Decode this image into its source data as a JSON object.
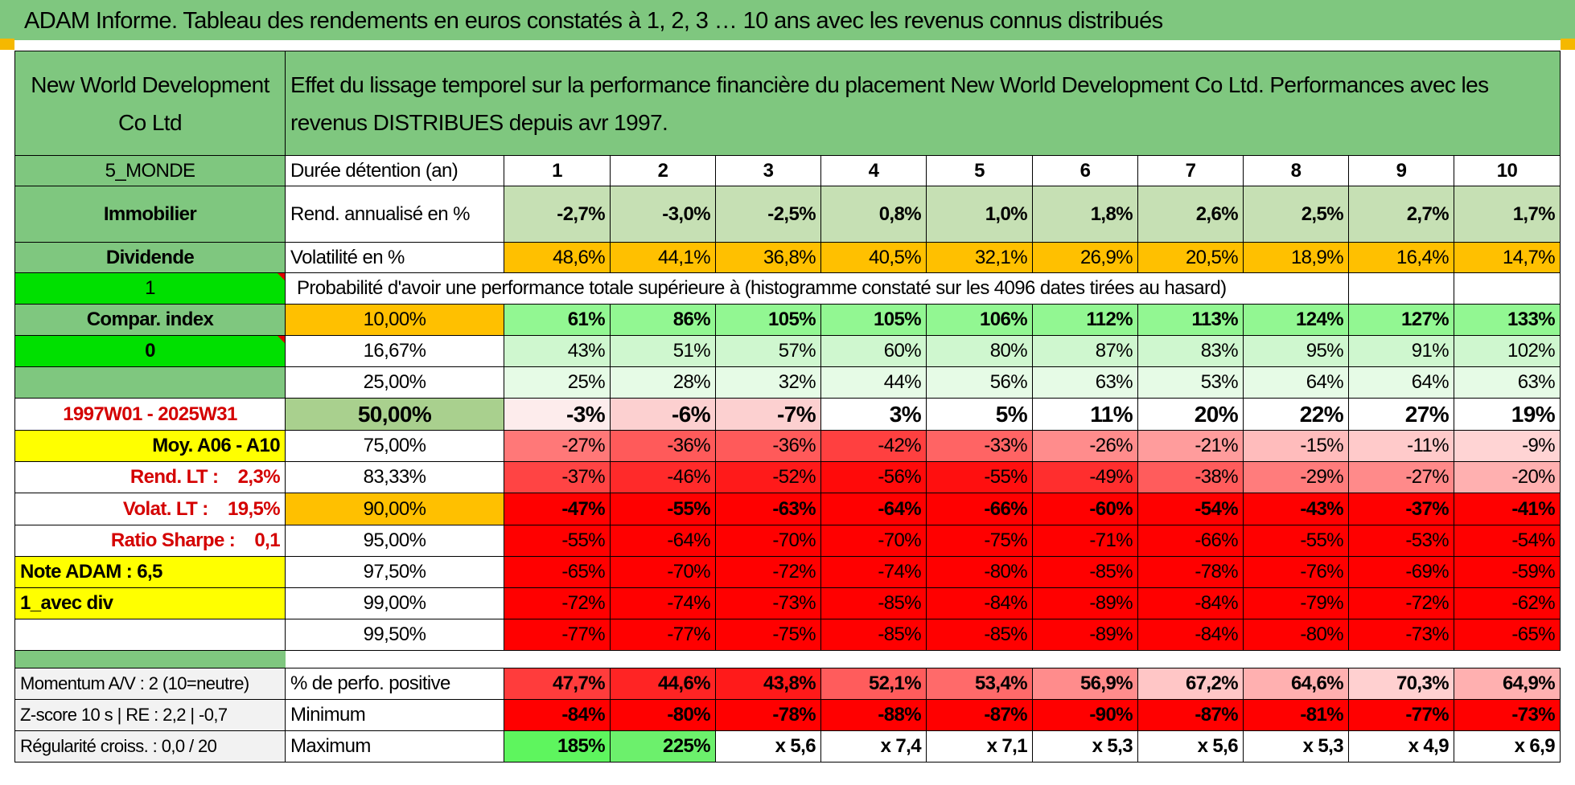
{
  "header": {
    "title": "ADAM Informe. Tableau des rendements en euros constatés à 1, 2, 3 … 10 ans avec les revenus connus distribués"
  },
  "fund": {
    "name": "New World Development Co Ltd",
    "description": "Effet du lissage temporel sur la performance financière du placement New World Development Co Ltd. Performances avec les revenus DISTRIBUES depuis avr 1997."
  },
  "side": {
    "zone": "5_MONDE",
    "sector": "Immobilier",
    "income": "Dividende",
    "flag1": "1",
    "compar": "Compar. index",
    "flag0": "0",
    "period": "1997W01 - 2025W31",
    "moy": "Moy. A06 - A10",
    "rend_lt": "Rend. LT :    2,3%",
    "volat_lt": "Volat. LT :    19,5%",
    "sharpe": "Ratio Sharpe :    0,1",
    "note": "Note ADAM : 6,5",
    "div": "1_avec div"
  },
  "row_labels": {
    "duration": "Durée détention (an)",
    "rendement": "Rend. annualisé en %",
    "volatilite": "Volatilité en %",
    "proba": "Probabilité d'avoir une performance totale supérieure à (histogramme constaté sur les 4096 dates tirées au hasard)",
    "positive": "% de perfo. positive",
    "minimum": "Minimum",
    "maximum": "Maximum"
  },
  "years": [
    "1",
    "2",
    "3",
    "4",
    "5",
    "6",
    "7",
    "8",
    "9",
    "10"
  ],
  "rendement": [
    "-2,7%",
    "-3,0%",
    "-2,5%",
    "0,8%",
    "1,0%",
    "1,8%",
    "2,6%",
    "2,5%",
    "2,7%",
    "1,7%"
  ],
  "volatilite": [
    "48,6%",
    "44,1%",
    "36,8%",
    "40,5%",
    "32,1%",
    "26,9%",
    "20,5%",
    "18,9%",
    "16,4%",
    "14,7%"
  ],
  "quantiles": [
    {
      "p": "10,00%",
      "v": [
        "61%",
        "86%",
        "105%",
        "105%",
        "106%",
        "112%",
        "113%",
        "124%",
        "127%",
        "133%"
      ]
    },
    {
      "p": "16,67%",
      "v": [
        "43%",
        "51%",
        "57%",
        "60%",
        "80%",
        "87%",
        "83%",
        "95%",
        "91%",
        "102%"
      ]
    },
    {
      "p": "25,00%",
      "v": [
        "25%",
        "28%",
        "32%",
        "44%",
        "56%",
        "63%",
        "53%",
        "64%",
        "64%",
        "63%"
      ]
    },
    {
      "p": "50,00%",
      "v": [
        "-3%",
        "-6%",
        "-7%",
        "3%",
        "5%",
        "11%",
        "20%",
        "22%",
        "27%",
        "19%"
      ]
    },
    {
      "p": "75,00%",
      "v": [
        "-27%",
        "-36%",
        "-36%",
        "-42%",
        "-33%",
        "-26%",
        "-21%",
        "-15%",
        "-11%",
        "-9%"
      ]
    },
    {
      "p": "83,33%",
      "v": [
        "-37%",
        "-46%",
        "-52%",
        "-56%",
        "-55%",
        "-49%",
        "-38%",
        "-29%",
        "-27%",
        "-20%"
      ]
    },
    {
      "p": "90,00%",
      "v": [
        "-47%",
        "-55%",
        "-63%",
        "-64%",
        "-66%",
        "-60%",
        "-54%",
        "-43%",
        "-37%",
        "-41%"
      ]
    },
    {
      "p": "95,00%",
      "v": [
        "-55%",
        "-64%",
        "-70%",
        "-70%",
        "-75%",
        "-71%",
        "-66%",
        "-55%",
        "-53%",
        "-54%"
      ]
    },
    {
      "p": "97,50%",
      "v": [
        "-65%",
        "-70%",
        "-72%",
        "-74%",
        "-80%",
        "-85%",
        "-78%",
        "-76%",
        "-69%",
        "-59%"
      ]
    },
    {
      "p": "99,00%",
      "v": [
        "-72%",
        "-74%",
        "-73%",
        "-85%",
        "-84%",
        "-89%",
        "-84%",
        "-79%",
        "-72%",
        "-62%"
      ]
    },
    {
      "p": "99,50%",
      "v": [
        "-77%",
        "-77%",
        "-75%",
        "-85%",
        "-85%",
        "-89%",
        "-84%",
        "-80%",
        "-73%",
        "-65%"
      ]
    }
  ],
  "bottom": {
    "momentum": "Momentum A/V : 2 (10=neutre)",
    "zscore": "Z-score 10 s | RE : 2,2 | -0,7",
    "regularite": "Régularité croiss. : 0,0 / 20",
    "positive": [
      "47,7%",
      "44,6%",
      "43,8%",
      "52,1%",
      "53,4%",
      "56,9%",
      "67,2%",
      "64,6%",
      "70,3%",
      "64,9%"
    ],
    "minimum": [
      "-84%",
      "-80%",
      "-78%",
      "-88%",
      "-87%",
      "-90%",
      "-87%",
      "-81%",
      "-77%",
      "-73%"
    ],
    "maximum": [
      "185%",
      "225%",
      "x 5,6",
      "x 7,4",
      "x 7,1",
      "x 5,3",
      "x 5,6",
      "x 5,3",
      "x 4,9",
      "x 6,9"
    ]
  },
  "colors": {
    "header_green": "#7fc77f",
    "bright_green": "#00e000",
    "yellow": "#ffff00",
    "orange": "#ffc000",
    "light_green": "#c6e0b4",
    "red_strong": "#ff0000",
    "red_text": "#d40000",
    "quantile_rows": [
      [
        "#92f792",
        "#92f792",
        "#92f792",
        "#92f792",
        "#92f792",
        "#92f792",
        "#92f792",
        "#92f792",
        "#92f792",
        "#92f792"
      ],
      [
        "#cff7cf",
        "#cff7cf",
        "#cff7cf",
        "#cff7cf",
        "#cff7cf",
        "#cff7cf",
        "#cff7cf",
        "#cff7cf",
        "#cff7cf",
        "#cff7cf"
      ],
      [
        "#e6fbe6",
        "#e6fbe6",
        "#e6fbe6",
        "#e6fbe6",
        "#e6fbe6",
        "#e6fbe6",
        "#e6fbe6",
        "#e6fbe6",
        "#e6fbe6",
        "#e6fbe6"
      ],
      [
        "#fdecec",
        "#fcd0d0",
        "#fcd0d0",
        "#ffffff",
        "#ffffff",
        "#ffffff",
        "#ffffff",
        "#ffffff",
        "#ffffff",
        "#ffffff"
      ],
      [
        "#ff7878",
        "#ff5a5a",
        "#ff5a5a",
        "#ff4040",
        "#ff6464",
        "#ff8c8c",
        "#ff9c9c",
        "#ffbcbc",
        "#ffcaca",
        "#ffd4d4"
      ],
      [
        "#ff4444",
        "#ff2a2a",
        "#ff1a1a",
        "#ff0a0a",
        "#ff0f0f",
        "#ff2e2e",
        "#ff5c5c",
        "#ff7c7c",
        "#ff8a8a",
        "#ffb0b0"
      ],
      [
        "#ff0000",
        "#ff0000",
        "#ff0000",
        "#ff0000",
        "#ff0000",
        "#ff0000",
        "#ff0000",
        "#ff0000",
        "#ff0000",
        "#ff0000"
      ],
      [
        "#ff0000",
        "#ff0000",
        "#ff0000",
        "#ff0000",
        "#ff0000",
        "#ff0000",
        "#ff0000",
        "#ff0000",
        "#ff0000",
        "#ff0000"
      ],
      [
        "#ff0000",
        "#ff0000",
        "#ff0000",
        "#ff0000",
        "#ff0000",
        "#ff0000",
        "#ff0000",
        "#ff0000",
        "#ff0000",
        "#ff0000"
      ],
      [
        "#ff0000",
        "#ff0000",
        "#ff0000",
        "#ff0000",
        "#ff0000",
        "#ff0000",
        "#ff0000",
        "#ff0000",
        "#ff0000",
        "#ff0000"
      ],
      [
        "#ff0000",
        "#ff0000",
        "#ff0000",
        "#ff0000",
        "#ff0000",
        "#ff0000",
        "#ff0000",
        "#ff0000",
        "#ff0000",
        "#ff0000"
      ]
    ],
    "positive": [
      "#ff3c3c",
      "#ff2424",
      "#ff1a1a",
      "#ff5c5c",
      "#ff6a6a",
      "#ff8c8c",
      "#ffc6c6",
      "#ffb0b0",
      "#ffd0d0",
      "#ffb0b0"
    ],
    "maximum": [
      "#5ef55e",
      "#6cf06c",
      "#ffffff",
      "#ffffff",
      "#ffffff",
      "#ffffff",
      "#ffffff",
      "#ffffff",
      "#ffffff",
      "#ffffff"
    ]
  }
}
